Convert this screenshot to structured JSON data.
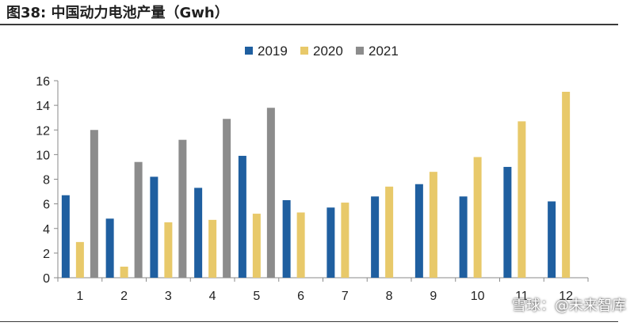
{
  "figure": {
    "title": "图38:  中国动力电池产量（Gwh）"
  },
  "watermark": "雪球：@未来智库",
  "chart_data": {
    "type": "bar",
    "title": "图38:  中国动力电池产量（Gwh）",
    "xlabel": "",
    "ylabel": "",
    "ylim": [
      0,
      16
    ],
    "yticks": [
      0,
      2,
      4,
      6,
      8,
      10,
      12,
      14,
      16
    ],
    "grid": false,
    "legend_position": "top-center",
    "categories": [
      "1",
      "2",
      "3",
      "4",
      "5",
      "6",
      "7",
      "8",
      "9",
      "10",
      "11",
      "12"
    ],
    "series": [
      {
        "name": "2019",
        "color": "#1f5fa0",
        "values": [
          6.7,
          4.8,
          8.2,
          7.3,
          9.9,
          6.3,
          5.7,
          6.6,
          7.6,
          6.6,
          9.0,
          6.2
        ]
      },
      {
        "name": "2020",
        "color": "#e8c96a",
        "values": [
          2.9,
          0.9,
          4.5,
          4.7,
          5.2,
          5.3,
          6.1,
          7.4,
          8.6,
          9.8,
          12.7,
          15.1
        ]
      },
      {
        "name": "2021",
        "color": "#8c8c8c",
        "values": [
          12.0,
          9.4,
          11.2,
          12.9,
          13.8,
          null,
          null,
          null,
          null,
          null,
          null,
          null
        ]
      }
    ]
  }
}
